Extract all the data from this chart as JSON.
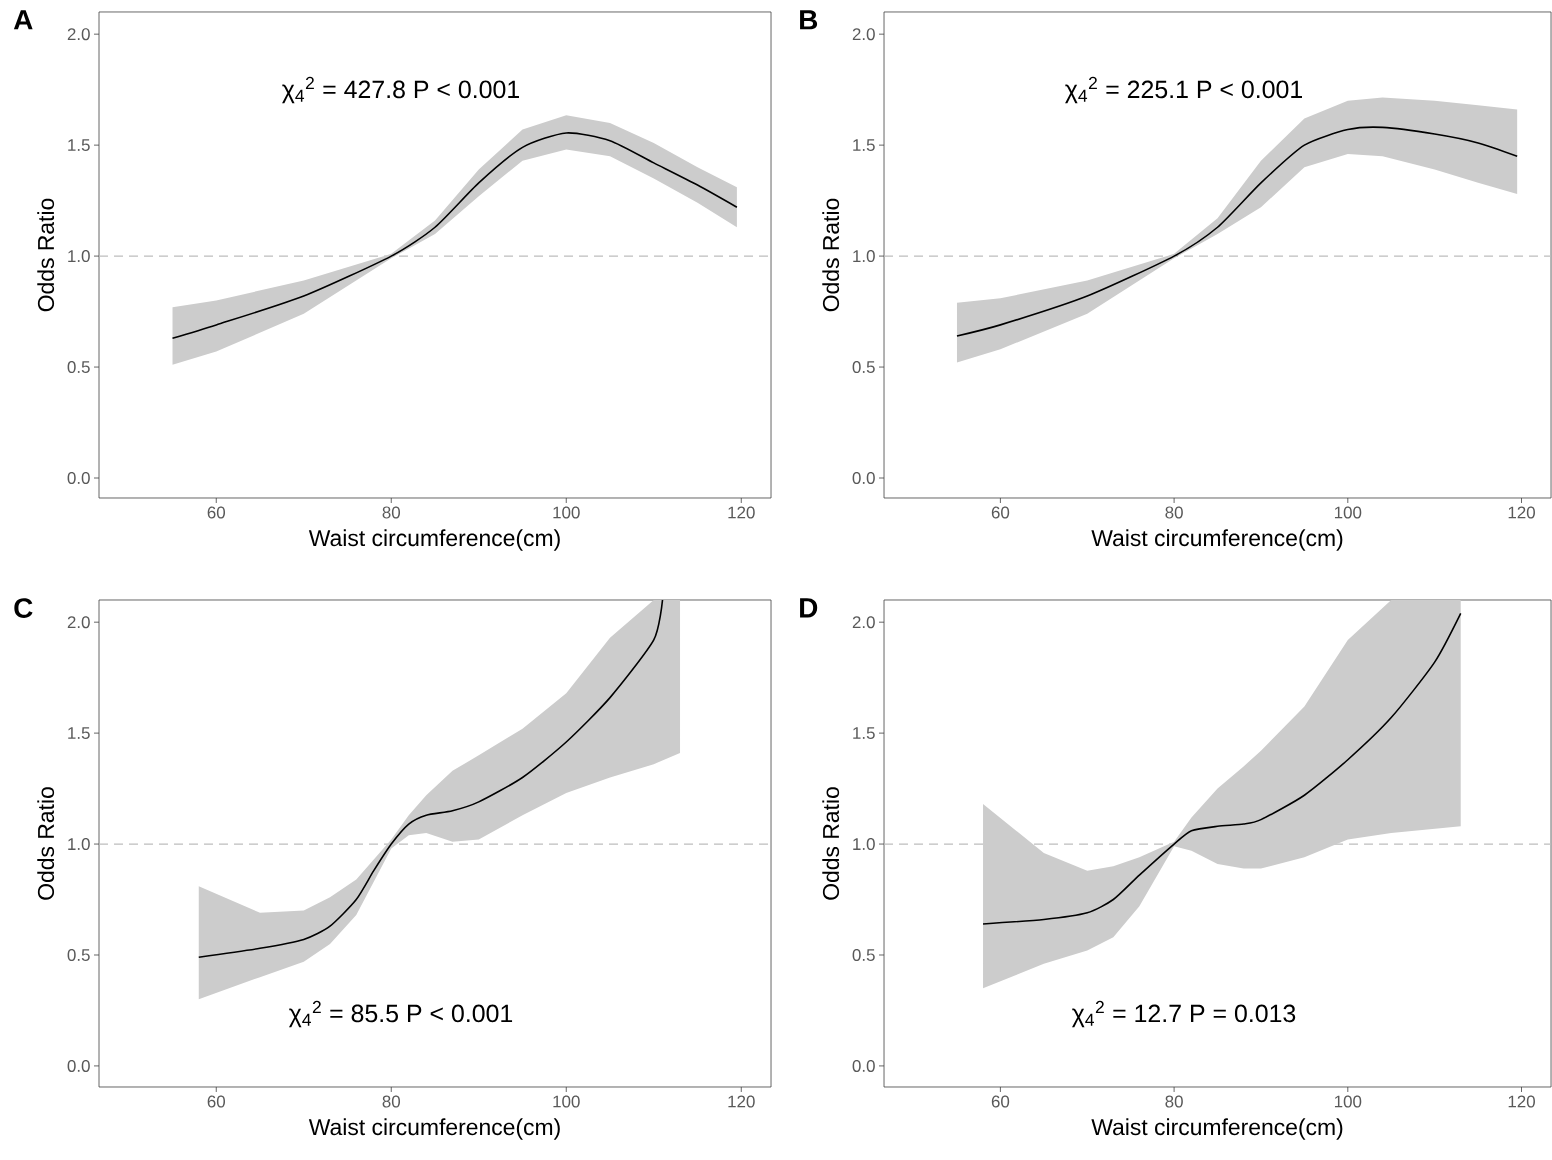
{
  "chart_data": [
    {
      "type": "line",
      "title": "A",
      "xlabel": "Waist circumference(cm)",
      "ylabel": "Odds Ratio",
      "annotations": [
        "χ$_{4}$$^{2}$ = 427.8  P < 0.001"
      ],
      "xlim": [
        46.6,
        123.4
      ],
      "ylim": [
        -0.09,
        2.1
      ],
      "xticks": [
        60,
        80,
        100,
        120
      ],
      "yticks": [
        {
          "value": 0,
          "label": "0.0"
        },
        {
          "value": 0.5,
          "label": "0.5"
        },
        {
          "value": 1,
          "label": "1.0"
        },
        {
          "value": 1.5,
          "label": "1.5"
        },
        {
          "value": 2,
          "label": "2.0"
        }
      ],
      "ref_lines": [
        {
          "axis": "y",
          "value": 1,
          "label": null,
          "color": "#bdbdbd",
          "line_style": "dashed"
        }
      ],
      "series": [
        {
          "color": "#000000",
          "x": [
            55,
            60,
            70,
            80,
            85,
            90,
            95,
            100,
            105,
            110,
            115,
            119.5
          ],
          "values": [
            0.63,
            0.69,
            0.82,
            1.0,
            1.13,
            1.33,
            1.49,
            1.555,
            1.52,
            1.42,
            1.32,
            1.22
          ],
          "lower": [
            0.51,
            0.57,
            0.74,
            0.99,
            1.1,
            1.27,
            1.43,
            1.48,
            1.45,
            1.35,
            1.24,
            1.13
          ],
          "upper": [
            0.77,
            0.8,
            0.89,
            1.01,
            1.16,
            1.39,
            1.57,
            1.635,
            1.6,
            1.51,
            1.4,
            1.31
          ]
        }
      ]
    },
    {
      "type": "line",
      "title": "B",
      "xlabel": "Waist circumference(cm)",
      "ylabel": "Odds Ratio",
      "annotations": [
        "χ$_{4}$$^{2}$ = 225.1  P < 0.001"
      ],
      "xlim": [
        46.6,
        123.4
      ],
      "ylim": [
        -0.09,
        2.1
      ],
      "xticks": [
        60,
        80,
        100,
        120
      ],
      "yticks": [
        {
          "value": 0,
          "label": "0.0"
        },
        {
          "value": 0.5,
          "label": "0.5"
        },
        {
          "value": 1,
          "label": "1.0"
        },
        {
          "value": 1.5,
          "label": "1.5"
        },
        {
          "value": 2,
          "label": "2.0"
        }
      ],
      "ref_lines": [
        {
          "axis": "y",
          "value": 1,
          "label": null,
          "color": "#bdbdbd",
          "line_style": "dashed"
        }
      ],
      "series": [
        {
          "color": "#000000",
          "x": [
            55,
            60,
            70,
            80,
            85,
            90,
            95,
            100,
            104,
            110,
            115,
            119.5
          ],
          "values": [
            0.64,
            0.69,
            0.82,
            1.0,
            1.13,
            1.33,
            1.5,
            1.57,
            1.58,
            1.55,
            1.51,
            1.45
          ],
          "lower": [
            0.52,
            0.58,
            0.74,
            0.99,
            1.1,
            1.22,
            1.4,
            1.46,
            1.45,
            1.39,
            1.33,
            1.28
          ],
          "upper": [
            0.79,
            0.81,
            0.89,
            1.01,
            1.17,
            1.43,
            1.62,
            1.7,
            1.715,
            1.7,
            1.68,
            1.66
          ]
        }
      ]
    },
    {
      "type": "line",
      "title": "C",
      "xlabel": "Waist circumference(cm)",
      "ylabel": "Odds Ratio",
      "annotations": [
        "χ$_{4}$$^{2}$ = 85.5  P < 0.001"
      ],
      "xlim": [
        46.6,
        123.4
      ],
      "ylim": [
        -0.095,
        2.1
      ],
      "xticks": [
        60,
        80,
        100,
        120
      ],
      "yticks": [
        {
          "value": 0,
          "label": "0.0"
        },
        {
          "value": 0.5,
          "label": "0.5"
        },
        {
          "value": 1,
          "label": "1.0"
        },
        {
          "value": 1.5,
          "label": "1.5"
        },
        {
          "value": 2,
          "label": "2.0"
        }
      ],
      "ref_lines": [
        {
          "axis": "y",
          "value": 1,
          "label": null,
          "color": "#bdbdbd",
          "line_style": "dashed"
        }
      ],
      "series": [
        {
          "color": "#000000",
          "x": [
            58,
            65,
            70,
            73,
            76,
            78,
            80,
            82,
            84,
            87,
            90,
            95,
            100,
            105,
            110,
            111,
            113
          ],
          "values": [
            0.49,
            0.53,
            0.57,
            0.63,
            0.75,
            0.88,
            1.0,
            1.09,
            1.13,
            1.15,
            1.19,
            1.3,
            1.46,
            1.66,
            1.92,
            2.1,
            null
          ],
          "lower": [
            0.3,
            0.4,
            0.47,
            0.55,
            0.68,
            0.83,
            0.98,
            1.04,
            1.05,
            1.01,
            1.02,
            1.13,
            1.23,
            1.3,
            1.36,
            null,
            1.41
          ],
          "upper": [
            0.81,
            0.69,
            0.7,
            0.76,
            0.84,
            0.93,
            1.02,
            1.13,
            1.22,
            1.33,
            1.4,
            1.52,
            1.68,
            1.93,
            2.1,
            null,
            2.1
          ]
        }
      ]
    },
    {
      "type": "line",
      "title": "D",
      "xlabel": "Waist circumference(cm)",
      "ylabel": "Odds Ratio",
      "annotations": [
        "χ$_{4}$$^{2}$ = 12.7  P = 0.013"
      ],
      "xlim": [
        46.6,
        123.4
      ],
      "ylim": [
        -0.095,
        2.1
      ],
      "xticks": [
        60,
        80,
        100,
        120
      ],
      "yticks": [
        {
          "value": 0,
          "label": "0.0"
        },
        {
          "value": 0.5,
          "label": "0.5"
        },
        {
          "value": 1,
          "label": "1.0"
        },
        {
          "value": 1.5,
          "label": "1.5"
        },
        {
          "value": 2,
          "label": "2.0"
        }
      ],
      "ref_lines": [
        {
          "axis": "y",
          "value": 1,
          "label": null,
          "color": "#bdbdbd",
          "line_style": "dashed"
        }
      ],
      "series": [
        {
          "color": "#000000",
          "x": [
            58,
            65,
            70,
            73,
            76,
            80,
            82,
            85,
            88,
            90,
            95,
            100,
            105,
            110,
            113
          ],
          "values": [
            0.64,
            0.66,
            0.69,
            0.75,
            0.86,
            1.0,
            1.06,
            1.08,
            1.09,
            1.11,
            1.22,
            1.38,
            1.57,
            1.82,
            2.04
          ],
          "lower": [
            0.35,
            0.46,
            0.52,
            0.58,
            0.72,
            0.99,
            0.97,
            0.91,
            0.89,
            0.89,
            0.94,
            1.02,
            1.05,
            null,
            1.08
          ],
          "upper": [
            1.18,
            0.96,
            0.88,
            0.9,
            0.94,
            1.01,
            1.12,
            1.25,
            1.35,
            1.42,
            1.62,
            1.92,
            2.1,
            null,
            2.1
          ]
        }
      ]
    }
  ]
}
